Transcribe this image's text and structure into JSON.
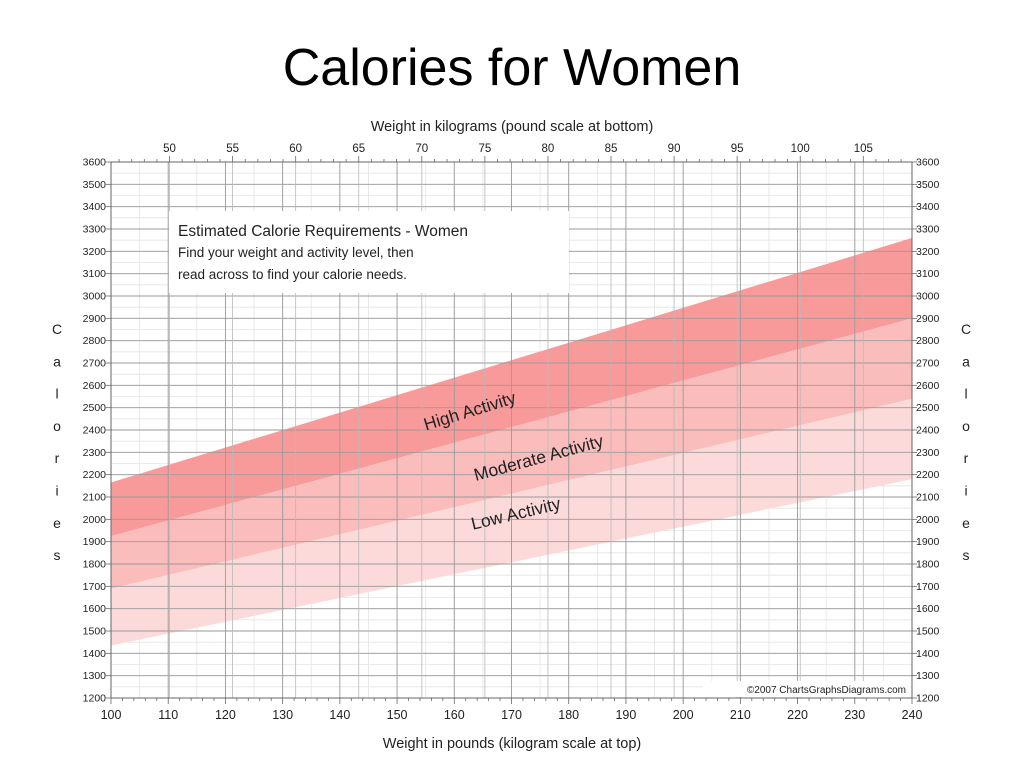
{
  "title": "Calories for Women",
  "chart_data": {
    "type": "area",
    "x_bottom": {
      "label": "Weight in pounds (kilogram scale at top)",
      "range": [
        100,
        240
      ],
      "ticks": [
        100,
        110,
        120,
        130,
        140,
        150,
        160,
        170,
        180,
        190,
        200,
        210,
        220,
        230,
        240
      ],
      "tick_labels": [
        "100",
        "110",
        "120",
        "130",
        "140",
        "150",
        "160",
        "170",
        "180",
        "190",
        "200",
        "210",
        "220",
        "230",
        "240"
      ]
    },
    "x_top": {
      "label": "Weight in kilograms (pound scale at bottom)",
      "ticks": [
        50,
        55,
        60,
        65,
        70,
        75,
        80,
        85,
        90,
        95,
        100,
        105
      ],
      "tick_labels": [
        "50",
        "55",
        "60",
        "65",
        "70",
        "75",
        "80",
        "85",
        "90",
        "95",
        "100",
        "105"
      ]
    },
    "y": {
      "label": "Calories",
      "label_letters": [
        "C",
        "a",
        "l",
        "o",
        "r",
        "i",
        "e",
        "s"
      ],
      "range": [
        1200,
        3600
      ],
      "ticks": [
        1200,
        1300,
        1400,
        1500,
        1600,
        1700,
        1800,
        1900,
        2000,
        2100,
        2200,
        2300,
        2400,
        2500,
        2600,
        2700,
        2800,
        2900,
        3000,
        3100,
        3200,
        3300,
        3400,
        3500,
        3600
      ],
      "tick_labels": [
        "1200",
        "1300",
        "1400",
        "1500",
        "1600",
        "1700",
        "1800",
        "1900",
        "2000",
        "2100",
        "2200",
        "2300",
        "2400",
        "2500",
        "2600",
        "2700",
        "2800",
        "2900",
        "3000",
        "3100",
        "3200",
        "3300",
        "3400",
        "3500",
        "3600"
      ]
    },
    "grid": true,
    "series": [
      {
        "name": "High Activity",
        "color": "#f99a9a",
        "x": [
          100,
          240
        ],
        "upper": [
          2165,
          3260
        ],
        "lower": [
          1925,
          2900
        ]
      },
      {
        "name": "Moderate Activity",
        "color": "#fbbcbc",
        "x": [
          100,
          240
        ],
        "upper": [
          1925,
          2900
        ],
        "lower": [
          1690,
          2540
        ]
      },
      {
        "name": "Low Activity",
        "color": "#fddada",
        "x": [
          100,
          240
        ],
        "upper": [
          1690,
          2540
        ],
        "lower": [
          1435,
          2180
        ]
      }
    ],
    "annotation": {
      "title": "Estimated Calorie Requirements - Women",
      "lines": [
        "Find your weight and activity level, then",
        "read across to find your calorie needs."
      ]
    },
    "credit": "©2007 ChartsGraphsDiagrams.com"
  }
}
